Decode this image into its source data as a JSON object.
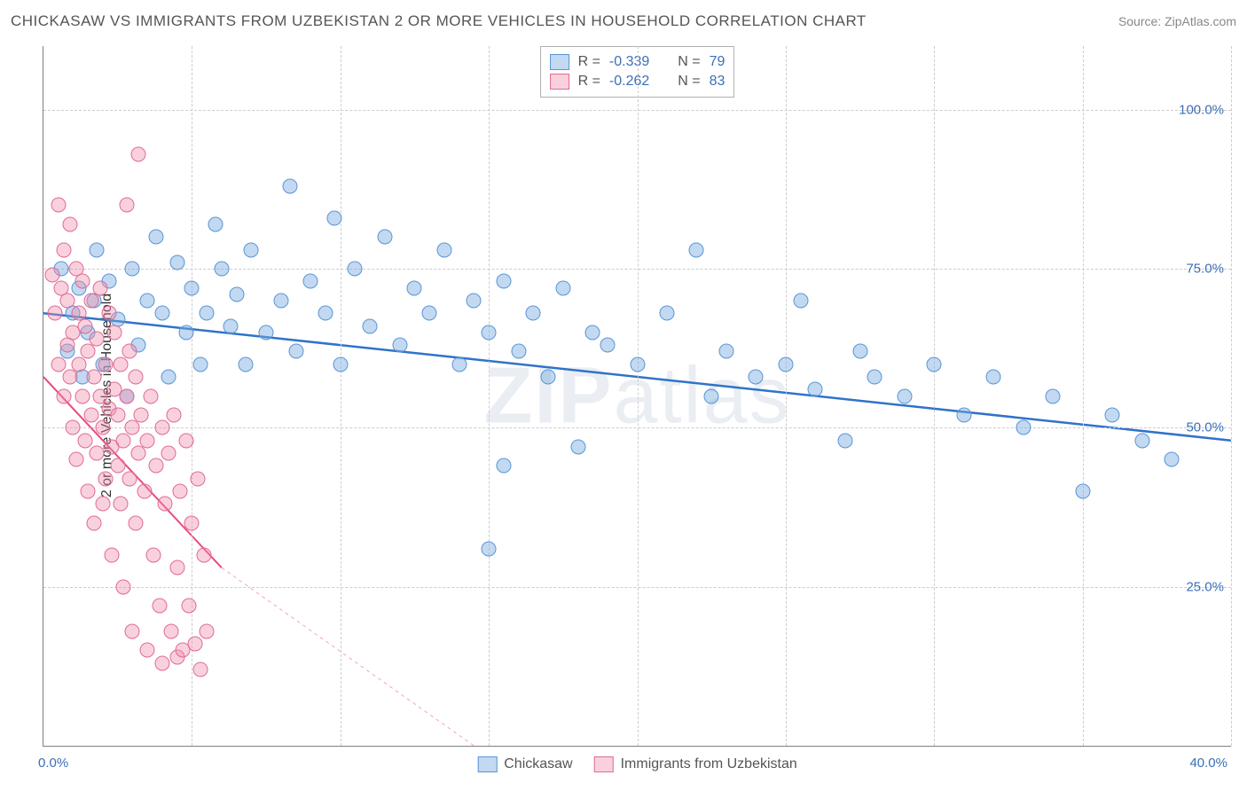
{
  "title": "CHICKASAW VS IMMIGRANTS FROM UZBEKISTAN 2 OR MORE VEHICLES IN HOUSEHOLD CORRELATION CHART",
  "source": "Source: ZipAtlas.com",
  "ylabel": "2 or more Vehicles in Household",
  "watermark_bold": "ZIP",
  "watermark_rest": "atlas",
  "chart": {
    "type": "scatter",
    "xlim": [
      0,
      40
    ],
    "ylim": [
      0,
      110
    ],
    "yticks": [
      25,
      50,
      75,
      100
    ],
    "ytick_labels": [
      "25.0%",
      "50.0%",
      "75.0%",
      "100.0%"
    ],
    "xgrid_positions": [
      0,
      5,
      10,
      15,
      20,
      25,
      30,
      35,
      40
    ],
    "xtick_left": "0.0%",
    "xtick_right": "40.0%",
    "background_color": "#ffffff",
    "grid_color": "#cccccc",
    "axis_color": "#808080",
    "point_radius": 8.5,
    "series": [
      {
        "name": "Chickasaw",
        "fill": "rgba(120,170,225,0.45)",
        "stroke": "#5a95d6",
        "trend_color": "#2f73c9",
        "trend_width": 2.5,
        "trend": {
          "x1": 0,
          "y1": 68,
          "x2": 40,
          "y2": 48
        },
        "R": "-0.339",
        "N": "79",
        "points": [
          [
            0.6,
            75
          ],
          [
            0.8,
            62
          ],
          [
            1.0,
            68
          ],
          [
            1.2,
            72
          ],
          [
            1.3,
            58
          ],
          [
            1.5,
            65
          ],
          [
            1.7,
            70
          ],
          [
            1.8,
            78
          ],
          [
            2.0,
            60
          ],
          [
            2.2,
            73
          ],
          [
            2.5,
            67
          ],
          [
            2.8,
            55
          ],
          [
            3.0,
            75
          ],
          [
            3.2,
            63
          ],
          [
            3.5,
            70
          ],
          [
            3.8,
            80
          ],
          [
            4.0,
            68
          ],
          [
            4.2,
            58
          ],
          [
            4.5,
            76
          ],
          [
            4.8,
            65
          ],
          [
            5.0,
            72
          ],
          [
            5.3,
            60
          ],
          [
            5.5,
            68
          ],
          [
            5.8,
            82
          ],
          [
            6.0,
            75
          ],
          [
            6.3,
            66
          ],
          [
            6.5,
            71
          ],
          [
            6.8,
            60
          ],
          [
            7.0,
            78
          ],
          [
            7.5,
            65
          ],
          [
            8.0,
            70
          ],
          [
            8.3,
            88
          ],
          [
            8.5,
            62
          ],
          [
            9.0,
            73
          ],
          [
            9.5,
            68
          ],
          [
            9.8,
            83
          ],
          [
            10.0,
            60
          ],
          [
            10.5,
            75
          ],
          [
            11.0,
            66
          ],
          [
            11.5,
            80
          ],
          [
            12.0,
            63
          ],
          [
            12.5,
            72
          ],
          [
            13.0,
            68
          ],
          [
            13.5,
            78
          ],
          [
            14.0,
            60
          ],
          [
            14.5,
            70
          ],
          [
            15.0,
            65
          ],
          [
            15.5,
            73
          ],
          [
            15.0,
            31
          ],
          [
            15.5,
            44
          ],
          [
            16.0,
            62
          ],
          [
            16.5,
            68
          ],
          [
            17.0,
            58
          ],
          [
            17.5,
            72
          ],
          [
            18.0,
            47
          ],
          [
            18.5,
            65
          ],
          [
            19.0,
            63
          ],
          [
            20.0,
            60
          ],
          [
            21.0,
            68
          ],
          [
            22.0,
            78
          ],
          [
            22.5,
            55
          ],
          [
            23.0,
            62
          ],
          [
            24.0,
            58
          ],
          [
            25.0,
            60
          ],
          [
            25.5,
            70
          ],
          [
            26.0,
            56
          ],
          [
            27.0,
            48
          ],
          [
            27.5,
            62
          ],
          [
            28.0,
            58
          ],
          [
            29.0,
            55
          ],
          [
            30.0,
            60
          ],
          [
            31.0,
            52
          ],
          [
            32.0,
            58
          ],
          [
            33.0,
            50
          ],
          [
            34.0,
            55
          ],
          [
            35.0,
            40
          ],
          [
            36.0,
            52
          ],
          [
            37.0,
            48
          ],
          [
            38.0,
            45
          ]
        ]
      },
      {
        "name": "Immigrants from Uzbekistan",
        "fill": "rgba(240,140,170,0.40)",
        "stroke": "#e06a95",
        "trend_color": "#e84b86",
        "trend_width": 2,
        "trend": {
          "x1": 0,
          "y1": 58,
          "x2": 6,
          "y2": 28
        },
        "trend_dash": {
          "x1": 6,
          "y1": 28,
          "x2": 14.5,
          "y2": 0
        },
        "R": "-0.262",
        "N": "83",
        "points": [
          [
            0.3,
            74
          ],
          [
            0.4,
            68
          ],
          [
            0.5,
            85
          ],
          [
            0.5,
            60
          ],
          [
            0.6,
            72
          ],
          [
            0.7,
            55
          ],
          [
            0.7,
            78
          ],
          [
            0.8,
            63
          ],
          [
            0.8,
            70
          ],
          [
            0.9,
            58
          ],
          [
            0.9,
            82
          ],
          [
            1.0,
            65
          ],
          [
            1.0,
            50
          ],
          [
            1.1,
            75
          ],
          [
            1.1,
            45
          ],
          [
            1.2,
            68
          ],
          [
            1.2,
            60
          ],
          [
            1.3,
            55
          ],
          [
            1.3,
            73
          ],
          [
            1.4,
            48
          ],
          [
            1.4,
            66
          ],
          [
            1.5,
            62
          ],
          [
            1.5,
            40
          ],
          [
            1.6,
            70
          ],
          [
            1.6,
            52
          ],
          [
            1.7,
            58
          ],
          [
            1.7,
            35
          ],
          [
            1.8,
            64
          ],
          [
            1.8,
            46
          ],
          [
            1.9,
            55
          ],
          [
            1.9,
            72
          ],
          [
            2.0,
            50
          ],
          [
            2.0,
            38
          ],
          [
            2.1,
            60
          ],
          [
            2.1,
            42
          ],
          [
            2.2,
            53
          ],
          [
            2.2,
            68
          ],
          [
            2.3,
            47
          ],
          [
            2.3,
            30
          ],
          [
            2.4,
            56
          ],
          [
            2.4,
            65
          ],
          [
            2.5,
            44
          ],
          [
            2.5,
            52
          ],
          [
            2.6,
            38
          ],
          [
            2.6,
            60
          ],
          [
            2.7,
            48
          ],
          [
            2.7,
            25
          ],
          [
            2.8,
            55
          ],
          [
            2.8,
            85
          ],
          [
            2.9,
            42
          ],
          [
            2.9,
            62
          ],
          [
            3.0,
            50
          ],
          [
            3.0,
            18
          ],
          [
            3.1,
            58
          ],
          [
            3.1,
            35
          ],
          [
            3.2,
            46
          ],
          [
            3.2,
            93
          ],
          [
            3.3,
            52
          ],
          [
            3.4,
            40
          ],
          [
            3.5,
            15
          ],
          [
            3.5,
            48
          ],
          [
            3.6,
            55
          ],
          [
            3.7,
            30
          ],
          [
            3.8,
            44
          ],
          [
            3.9,
            22
          ],
          [
            4.0,
            50
          ],
          [
            4.0,
            13
          ],
          [
            4.1,
            38
          ],
          [
            4.2,
            46
          ],
          [
            4.3,
            18
          ],
          [
            4.4,
            52
          ],
          [
            4.5,
            28
          ],
          [
            4.5,
            14
          ],
          [
            4.6,
            40
          ],
          [
            4.7,
            15
          ],
          [
            4.8,
            48
          ],
          [
            4.9,
            22
          ],
          [
            5.0,
            35
          ],
          [
            5.1,
            16
          ],
          [
            5.2,
            42
          ],
          [
            5.3,
            12
          ],
          [
            5.4,
            30
          ],
          [
            5.5,
            18
          ]
        ]
      }
    ]
  }
}
